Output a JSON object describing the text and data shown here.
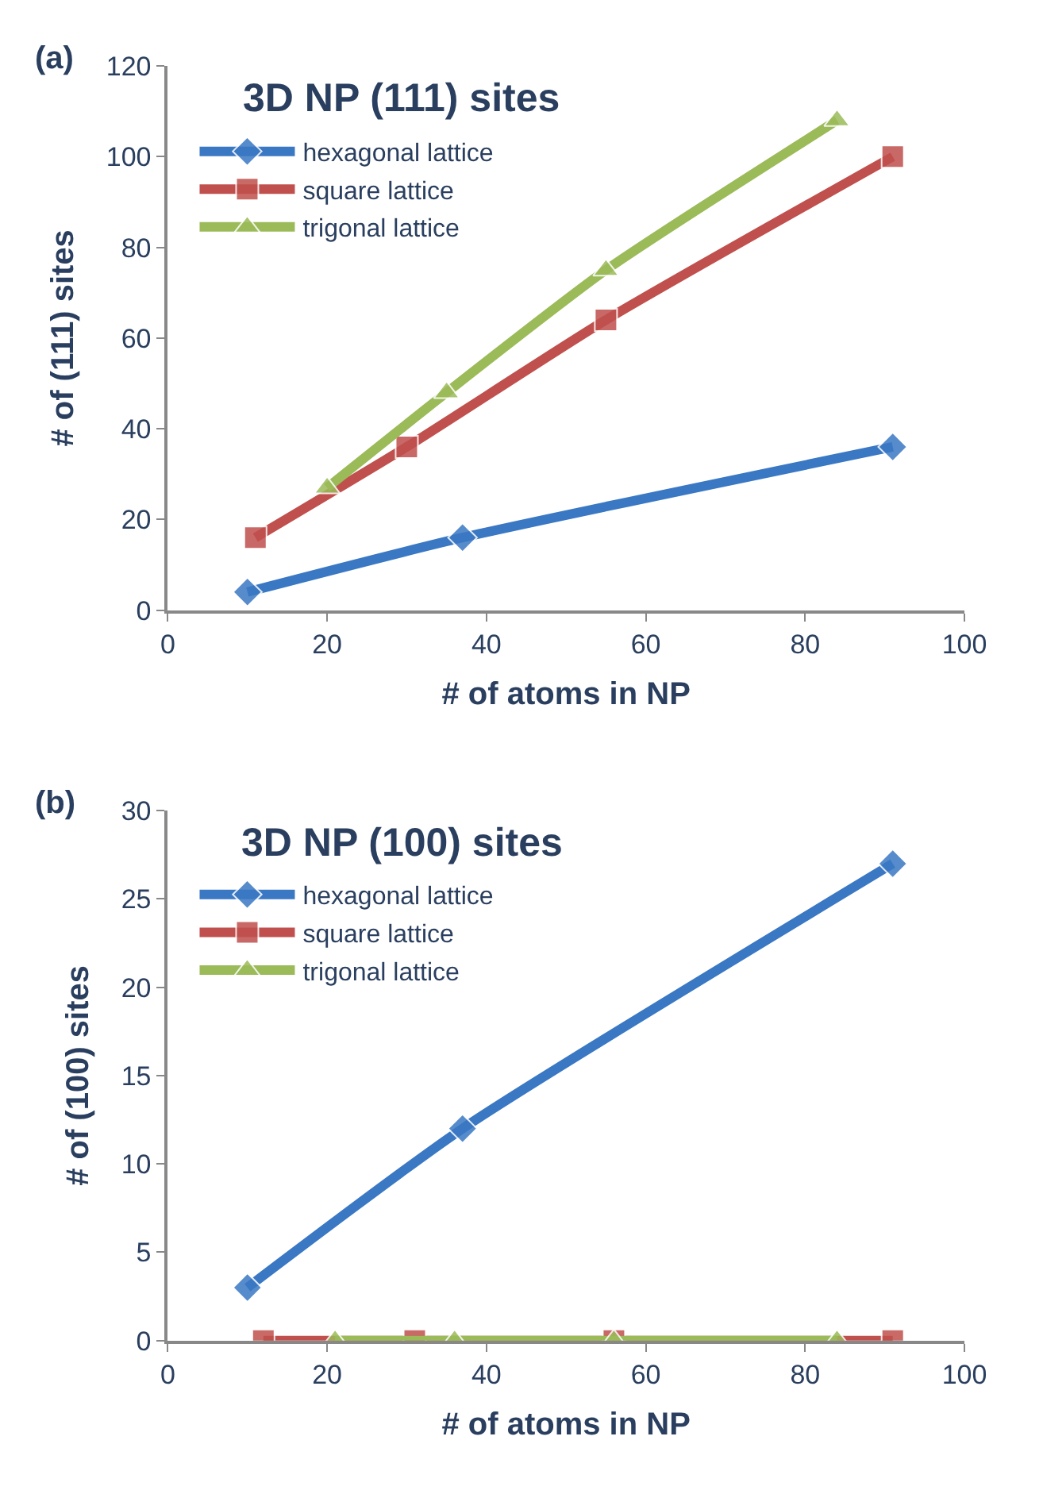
{
  "chart_data": [
    {
      "type": "line",
      "title": "3D NP (111) sites",
      "xlabel": "# of atoms in NP",
      "ylabel": "# of (111) sites",
      "annotations": [
        "(a)"
      ],
      "xlim": [
        0,
        100
      ],
      "xticks": [
        0,
        20,
        40,
        60,
        80,
        100
      ],
      "ylim": [
        0,
        120
      ],
      "yticks": [
        0,
        20,
        40,
        60,
        80,
        100,
        120
      ],
      "grid": false,
      "legend": "top left",
      "series": [
        {
          "name": "hexagonal lattice",
          "color": "#3a78c4",
          "marker": "diamond",
          "x": [
            10,
            37,
            91
          ],
          "values": [
            4,
            16,
            36
          ]
        },
        {
          "name": "square lattice",
          "color": "#c0504d",
          "marker": "square",
          "x": [
            11,
            30,
            55,
            91
          ],
          "values": [
            16,
            36,
            64,
            100
          ]
        },
        {
          "name": "trigonal lattice",
          "color": "#9bbb59",
          "marker": "triangle",
          "x": [
            20,
            35,
            55,
            84
          ],
          "values": [
            27,
            48,
            75,
            108
          ]
        }
      ]
    },
    {
      "type": "line",
      "title": "3D NP (100) sites",
      "xlabel": "# of atoms in NP",
      "ylabel": "# of (100) sites",
      "annotations": [
        "(b)"
      ],
      "xlim": [
        0,
        100
      ],
      "xticks": [
        0,
        20,
        40,
        60,
        80,
        100
      ],
      "ylim": [
        0,
        30
      ],
      "yticks": [
        0,
        5,
        10,
        15,
        20,
        25,
        30
      ],
      "grid": false,
      "legend": "top left",
      "series": [
        {
          "name": "hexagonal lattice",
          "color": "#3a78c4",
          "marker": "diamond",
          "x": [
            10,
            37,
            91
          ],
          "values": [
            3,
            12,
            27
          ]
        },
        {
          "name": "square lattice",
          "color": "#c0504d",
          "marker": "square",
          "x": [
            12,
            31,
            56,
            91
          ],
          "values": [
            0,
            0,
            0,
            0
          ]
        },
        {
          "name": "trigonal lattice",
          "color": "#9bbb59",
          "marker": "triangle",
          "x": [
            21,
            36,
            56,
            84
          ],
          "values": [
            0,
            0,
            0,
            0
          ]
        }
      ]
    }
  ]
}
